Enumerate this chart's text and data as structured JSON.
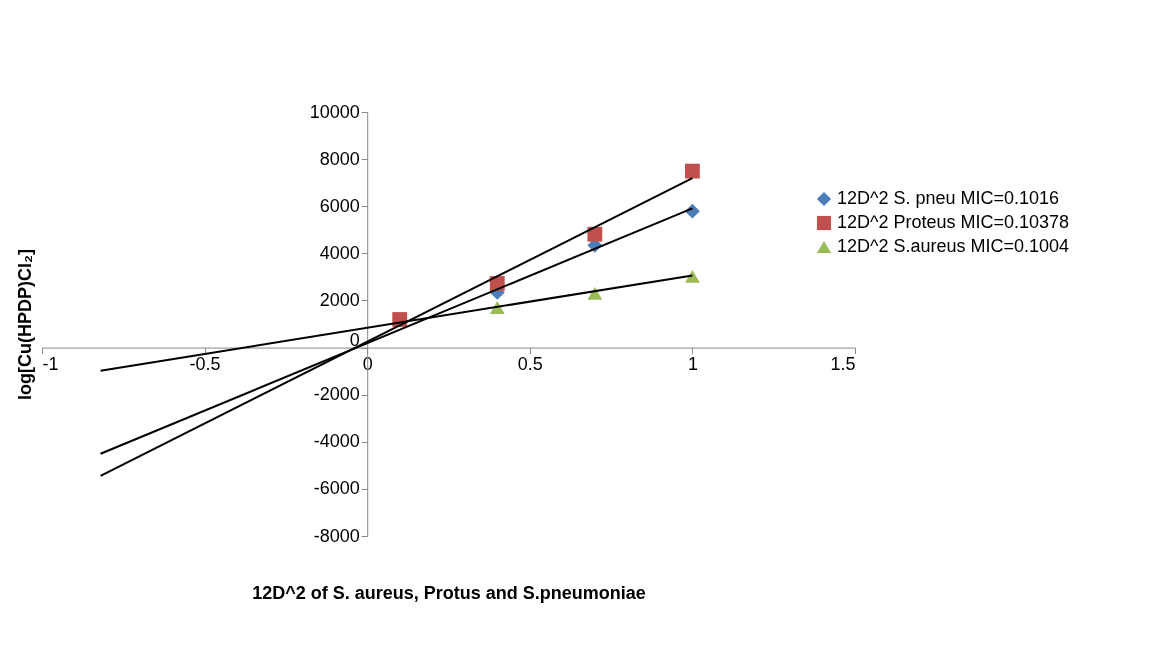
{
  "chart_data": {
    "type": "scatter",
    "xlabel": "12D^2 of S. aureus, Protus and S.pneumoniae",
    "ylabel": "log[Cu(HPDP)Cl₂]",
    "xlim": [
      -1,
      1.5
    ],
    "xticks": [
      -1,
      -0.5,
      0,
      0.5,
      1,
      1.5
    ],
    "ylim": [
      -8000,
      10000
    ],
    "yticks": [
      -8000,
      -6000,
      -4000,
      -2000,
      0,
      2000,
      4000,
      6000,
      8000,
      10000
    ],
    "grid": false,
    "legend": "right",
    "series": [
      {
        "name": "12D^2 S. pneu MIC=0.1016",
        "color": "#4a7ebb",
        "marker": "diamond",
        "x": [
          0.4,
          0.7,
          1
        ],
        "values": [
          2340,
          4340,
          5790
        ]
      },
      {
        "name": "12D^2 Proteus MIC=0.10378",
        "color": "#c0504d",
        "marker": "square",
        "x": [
          0.1,
          0.4,
          0.7,
          1
        ],
        "values": [
          1190,
          2720,
          4810,
          7490
        ]
      },
      {
        "name": "12D^2 S.aureus MIC=0.1004",
        "color": "#9bbb59",
        "marker": "triangle",
        "x": [
          0.4,
          0.7,
          1
        ],
        "values": [
          1700,
          2300,
          3020
        ]
      },
      {
        "type": "line",
        "color": "#000000",
        "x": [
          -0.82,
          1
        ],
        "values": [
          -4510,
          5910
        ]
      },
      {
        "type": "line",
        "color": "#000000",
        "x": [
          -0.82,
          1
        ],
        "values": [
          -5450,
          7190
        ]
      },
      {
        "type": "line",
        "color": "#000000",
        "x": [
          -0.82,
          1
        ],
        "values": [
          -980,
          3060
        ]
      }
    ]
  }
}
